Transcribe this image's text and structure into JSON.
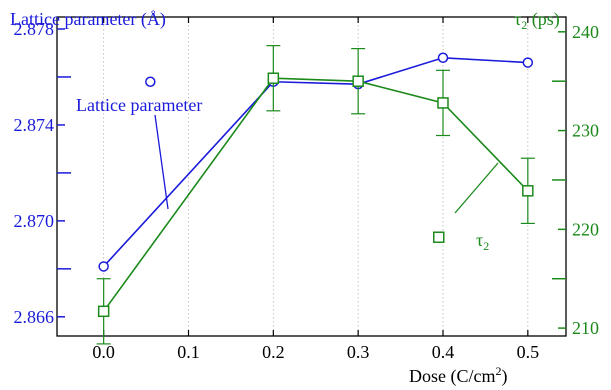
{
  "chart_data": {
    "type": "line",
    "x": [
      0.0,
      0.2,
      0.3,
      0.4,
      0.5
    ],
    "x_tick_labels": [
      "0.0",
      "0.1",
      "0.2",
      "0.3",
      "0.4",
      "0.5"
    ],
    "x_ticks": [
      0.0,
      0.1,
      0.2,
      0.3,
      0.4,
      0.5
    ],
    "xlim": [
      -0.055,
      0.545
    ],
    "xlabel": "Dose (C/cm²)",
    "xlabel_main": "Dose (C/cm",
    "xlabel_sup": "2",
    "xlabel_end": ")",
    "grid_x": true,
    "series": [
      {
        "name": "Lattice parameter",
        "axis": "left",
        "color": "#1a1adb",
        "marker": "circle",
        "values": [
          2.8681,
          2.8758,
          2.8757,
          2.8768,
          2.8766
        ],
        "legend_marker_value": {
          "x": 0.055,
          "y": 2.8758
        }
      },
      {
        "name": "τ2",
        "name_base": "τ",
        "name_sub": "2",
        "axis": "right",
        "color": "#1b8a1b",
        "marker": "square",
        "values": [
          211.7,
          235.3,
          235.0,
          232.8,
          223.9
        ],
        "error": [
          3.3,
          3.3,
          3.3,
          3.3,
          3.3
        ],
        "legend_marker_value": {
          "x": 0.395,
          "y": 219.2
        }
      }
    ],
    "y_left": {
      "label": "Lattice parameter (Å)",
      "ticks": [
        2.866,
        2.87,
        2.874,
        2.878
      ],
      "tick_labels": [
        "2.866",
        "2.870",
        "2.874",
        "2.878"
      ],
      "minor_ticks": [
        2.868,
        2.872,
        2.876
      ],
      "ylim": [
        2.8652,
        2.8785
      ],
      "color": "#1a1adb"
    },
    "y_right": {
      "label": "τ2 (ps)",
      "label_base": "τ",
      "label_sub": "2",
      "label_end": " (ps)",
      "ticks": [
        210,
        220,
        230,
        240
      ],
      "tick_labels": [
        "210",
        "220",
        "230",
        "240"
      ],
      "minor_ticks": [
        215,
        225,
        235
      ],
      "ylim": [
        209.2,
        241.5
      ],
      "color": "#1b8a1b"
    },
    "annotations": {
      "lattice_label": "Lattice parameter",
      "tau_label_base": "τ",
      "tau_label_sub": "2"
    }
  }
}
